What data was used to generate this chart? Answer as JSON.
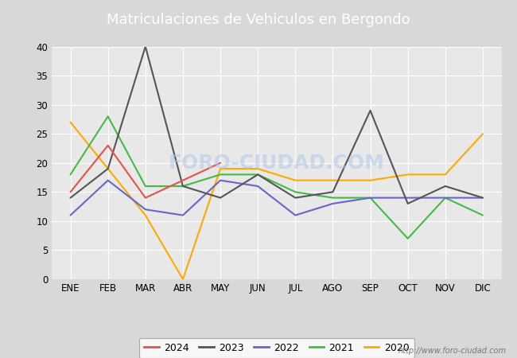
{
  "title": "Matriculaciones de Vehiculos en Bergondo",
  "title_bg_color": "#5b8dd9",
  "title_text_color": "white",
  "months": [
    "ENE",
    "FEB",
    "MAR",
    "ABR",
    "MAY",
    "JUN",
    "JUL",
    "AGO",
    "SEP",
    "OCT",
    "NOV",
    "DIC"
  ],
  "series": {
    "2024": {
      "color": "#e8524a",
      "data": [
        15,
        23,
        14,
        17,
        20,
        null,
        null,
        null,
        null,
        null,
        null,
        null
      ]
    },
    "2023": {
      "color": "#555555",
      "data": [
        14,
        19,
        40,
        16,
        14,
        18,
        14,
        15,
        29,
        13,
        16,
        14
      ]
    },
    "2022": {
      "color": "#6666cc",
      "data": [
        11,
        17,
        12,
        11,
        17,
        16,
        11,
        13,
        14,
        14,
        14,
        14
      ]
    },
    "2021": {
      "color": "#44bb44",
      "data": [
        18,
        28,
        16,
        16,
        18,
        18,
        15,
        14,
        14,
        7,
        14,
        11
      ]
    },
    "2020": {
      "color": "#ffaa00",
      "data": [
        27,
        19,
        11,
        0,
        19,
        19,
        17,
        17,
        17,
        18,
        18,
        25
      ]
    }
  },
  "ylim": [
    0,
    40
  ],
  "yticks": [
    0,
    5,
    10,
    15,
    20,
    25,
    30,
    35,
    40
  ],
  "watermark": "http://www.foro-ciudad.com",
  "outer_bg_color": "#d8d8d8",
  "plot_bg_color": "#e8e8e8",
  "grid_color": "white",
  "title_fontsize": 13,
  "tick_fontsize": 8.5,
  "legend_fontsize": 9
}
